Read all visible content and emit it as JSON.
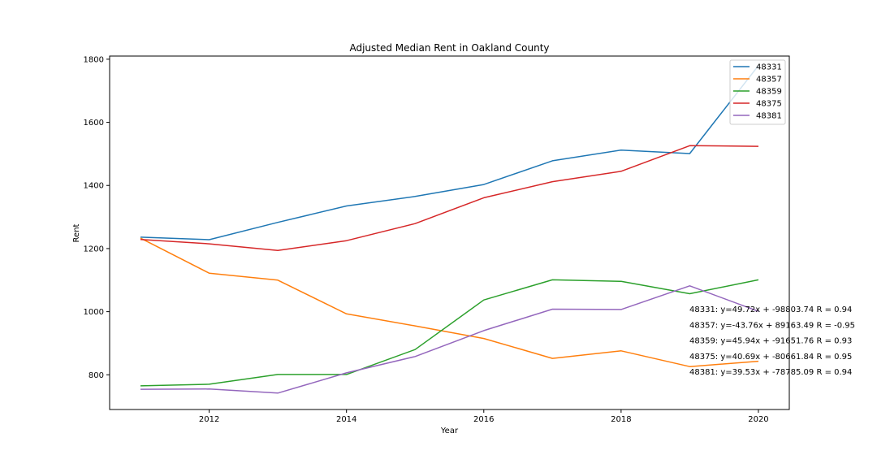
{
  "chart_data": {
    "type": "line",
    "title": "Adjusted Median Rent in Oakland County",
    "xlabel": "Year",
    "ylabel": "Rent",
    "x": [
      2011,
      2012,
      2013,
      2014,
      2015,
      2016,
      2017,
      2018,
      2019,
      2020
    ],
    "xlim": [
      2010.55,
      2020.45
    ],
    "ylim": [
      690,
      1810
    ],
    "xticks": [
      2012,
      2014,
      2016,
      2018,
      2020
    ],
    "yticks": [
      800,
      1000,
      1200,
      1400,
      1600,
      1800
    ],
    "grid": false,
    "legend_position": "top-right",
    "series": [
      {
        "name": "48331",
        "color": "#1f77b4",
        "values": [
          1236,
          1228,
          1283,
          1335,
          1365,
          1403,
          1478,
          1512,
          1501,
          1780
        ]
      },
      {
        "name": "48357",
        "color": "#ff7f0e",
        "values": [
          1233,
          1122,
          1100,
          993,
          955,
          915,
          852,
          876,
          826,
          843
        ]
      },
      {
        "name": "48359",
        "color": "#2ca02c",
        "values": [
          765,
          770,
          801,
          801,
          880,
          1037,
          1101,
          1096,
          1057,
          1101
        ]
      },
      {
        "name": "48375",
        "color": "#d62728",
        "values": [
          1229,
          1215,
          1194,
          1225,
          1279,
          1361,
          1412,
          1445,
          1526,
          1524
        ]
      },
      {
        "name": "48381",
        "color": "#9467bd",
        "values": [
          754,
          755,
          742,
          806,
          858,
          940,
          1008,
          1007,
          1082,
          1001
        ]
      }
    ],
    "annotations": [
      "48331: y=49.72x + -98803.74 R = 0.94",
      "48357: y=-43.76x + 89163.49 R = -0.95",
      "48359: y=45.94x + -91651.76 R = 0.93",
      "48375: y=40.69x + -80661.84 R = 0.95",
      "48381: y=39.53x + -78785.09 R = 0.94"
    ]
  }
}
